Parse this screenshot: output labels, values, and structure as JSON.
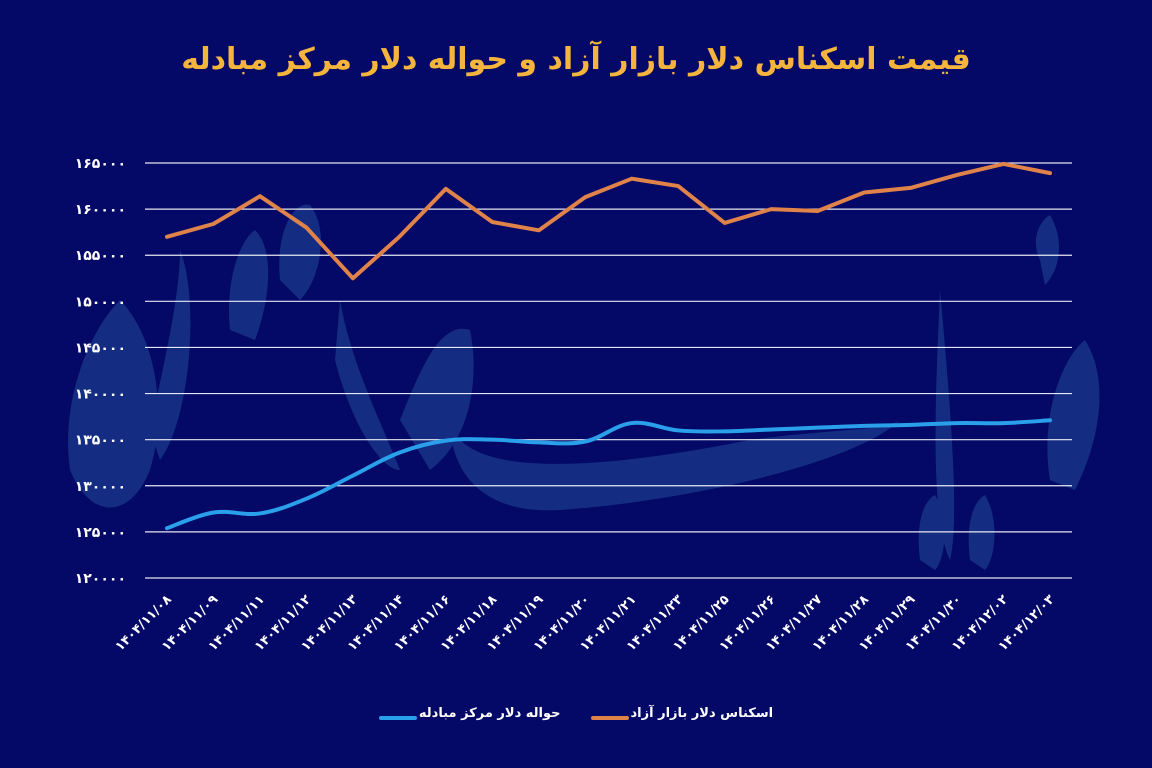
{
  "title": "قیمت اسکناس دلار بازار آزاد و حواله دلار مرکز مبادله",
  "colors": {
    "background": "#040866",
    "title": "#F5B53C",
    "grid": "#FFFFFF",
    "watermark": "#1A3A8C",
    "free_market": "#E0834A",
    "exchange_center": "#2A9FEA"
  },
  "chart_data": {
    "type": "line",
    "title": "قیمت اسکناس دلار بازار آزاد و حواله دلار مرکز مبادله",
    "xlabel": "",
    "ylabel": "",
    "ylim": [
      120000,
      165000
    ],
    "grid": true,
    "legend_position": "bottom",
    "y_ticks": [
      120000,
      125000,
      130000,
      135000,
      140000,
      145000,
      150000,
      155000,
      160000,
      165000
    ],
    "y_tick_labels": [
      "۱۲۰۰۰۰",
      "۱۲۵۰۰۰",
      "۱۳۰۰۰۰",
      "۱۳۵۰۰۰",
      "۱۴۰۰۰۰",
      "۱۴۵۰۰۰",
      "۱۵۰۰۰۰",
      "۱۵۵۰۰۰",
      "۱۶۰۰۰۰",
      "۱۶۵۰۰۰"
    ],
    "categories": [
      "۱۴۰۴/۱۱/۰۸",
      "۱۴۰۴/۱۱/۰۹",
      "۱۴۰۴/۱۱/۱۱",
      "۱۴۰۴/۱۱/۱۲",
      "۱۴۰۴/۱۱/۱۳",
      "۱۴۰۴/۱۱/۱۴",
      "۱۴۰۴/۱۱/۱۶",
      "۱۴۰۴/۱۱/۱۸",
      "۱۴۰۴/۱۱/۱۹",
      "۱۴۰۴/۱۱/۲۰",
      "۱۴۰۴/۱۱/۲۱",
      "۱۴۰۴/۱۱/۲۳",
      "۱۴۰۴/۱۱/۲۵",
      "۱۴۰۴/۱۱/۲۶",
      "۱۴۰۴/۱۱/۲۷",
      "۱۴۰۴/۱۱/۲۸",
      "۱۴۰۴/۱۱/۲۹",
      "۱۴۰۴/۱۱/۳۰",
      "۱۴۰۴/۱۲/۰۲",
      "۱۴۰۴/۱۲/۰۳"
    ],
    "series": [
      {
        "name": "اسکناس دلار بازار آزاد",
        "color": "#E0834A",
        "smooth": false,
        "values": [
          157000,
          158400,
          161400,
          158000,
          152500,
          157000,
          162200,
          158600,
          157700,
          161300,
          163300,
          162500,
          158500,
          160000,
          159800,
          161800,
          162300,
          163700,
          164900,
          163900
        ]
      },
      {
        "name": "حواله دلار مرکز مبادله",
        "color": "#2A9FEA",
        "smooth": true,
        "values": [
          125400,
          127100,
          127000,
          128600,
          131100,
          133600,
          134900,
          135000,
          134700,
          134800,
          136800,
          136000,
          135900,
          136100,
          136300,
          136500,
          136600,
          136800,
          136800,
          137100
        ]
      }
    ]
  },
  "legend": [
    {
      "label": "اسکناس دلار بازار آزاد",
      "color": "#E0834A"
    },
    {
      "label": "حواله دلار مرکز مبادله",
      "color": "#2A9FEA"
    }
  ],
  "watermark": "دنیای اقتصاد"
}
